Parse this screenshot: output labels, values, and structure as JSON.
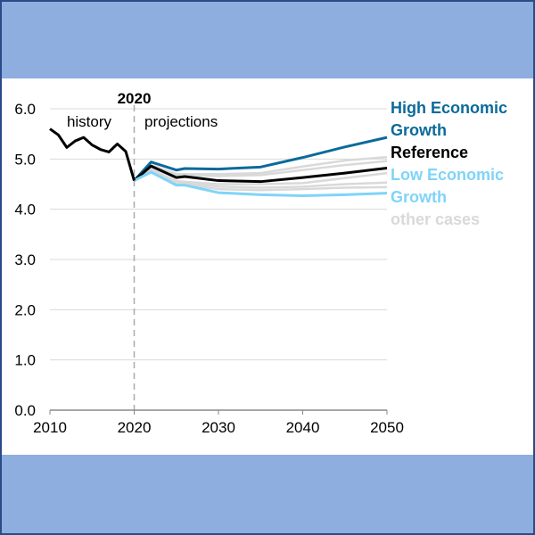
{
  "chart_data": {
    "type": "line",
    "xlim": [
      2010,
      2050
    ],
    "ylim": [
      0,
      6
    ],
    "grid": true,
    "x_ticks": [
      "2010",
      "2020",
      "2030",
      "2040",
      "2050"
    ],
    "y_ticks": [
      "0.0",
      "1.0",
      "2.0",
      "3.0",
      "4.0",
      "5.0",
      "6.0"
    ],
    "annotations": {
      "divider_label": "2020",
      "left_label": "history",
      "right_label": "projections"
    },
    "divider_x": 2020,
    "legend_placement": "right",
    "history": {
      "color": "#000000",
      "x": [
        2010,
        2011,
        2012,
        2013,
        2014,
        2015,
        2016,
        2017,
        2018,
        2019,
        2020
      ],
      "y": [
        5.6,
        5.48,
        5.23,
        5.36,
        5.43,
        5.28,
        5.19,
        5.14,
        5.3,
        5.15,
        4.57
      ]
    },
    "series": [
      {
        "name": "High Economic Growth",
        "color": "#0b6a9a",
        "x": [
          2020,
          2022,
          2025,
          2026,
          2030,
          2035,
          2040,
          2045,
          2050
        ],
        "y": [
          4.57,
          4.94,
          4.78,
          4.81,
          4.8,
          4.84,
          5.03,
          5.24,
          5.43
        ]
      },
      {
        "name": "Reference",
        "color": "#000000",
        "x": [
          2020,
          2022,
          2025,
          2026,
          2030,
          2035,
          2040,
          2045,
          2050
        ],
        "y": [
          4.57,
          4.86,
          4.63,
          4.65,
          4.57,
          4.55,
          4.63,
          4.72,
          4.82
        ]
      },
      {
        "name": "Low Economic Growth",
        "color": "#7fd4f8",
        "x": [
          2020,
          2022,
          2025,
          2026,
          2030,
          2035,
          2040,
          2045,
          2050
        ],
        "y": [
          4.57,
          4.74,
          4.48,
          4.48,
          4.33,
          4.29,
          4.27,
          4.29,
          4.32
        ]
      },
      {
        "name": "other cases",
        "color": "#d9d9d9",
        "x": [
          2020,
          2022,
          2025,
          2030,
          2035,
          2040,
          2045,
          2050
        ],
        "y": [
          4.57,
          4.88,
          4.7,
          4.7,
          4.72,
          4.85,
          4.97,
          5.04
        ]
      },
      {
        "name": "other cases",
        "color": "#d9d9d9",
        "x": [
          2020,
          2022,
          2025,
          2030,
          2035,
          2040,
          2045,
          2050
        ],
        "y": [
          4.57,
          4.87,
          4.68,
          4.66,
          4.68,
          4.78,
          4.88,
          4.96
        ]
      },
      {
        "name": "other cases",
        "color": "#d9d9d9",
        "x": [
          2020,
          2022,
          2025,
          2030,
          2035,
          2040,
          2045,
          2050
        ],
        "y": [
          4.57,
          4.8,
          4.56,
          4.5,
          4.5,
          4.52,
          4.62,
          4.72
        ]
      },
      {
        "name": "other cases",
        "color": "#d9d9d9",
        "x": [
          2020,
          2022,
          2025,
          2030,
          2035,
          2040,
          2045,
          2050
        ],
        "y": [
          4.57,
          4.78,
          4.55,
          4.45,
          4.43,
          4.45,
          4.5,
          4.53
        ]
      },
      {
        "name": "other cases",
        "color": "#d9d9d9",
        "x": [
          2020,
          2022,
          2025,
          2030,
          2035,
          2040,
          2045,
          2050
        ],
        "y": [
          4.57,
          4.76,
          4.52,
          4.4,
          4.38,
          4.4,
          4.43,
          4.44
        ]
      }
    ],
    "legend": [
      {
        "label": "High Economic Growth",
        "lines": [
          "High Economic",
          "Growth"
        ],
        "color": "#0b6a9a"
      },
      {
        "label": "Reference",
        "lines": [
          "Reference"
        ],
        "color": "#000000"
      },
      {
        "label": "Low Economic Growth",
        "lines": [
          "Low Economic",
          "Growth"
        ],
        "color": "#7fd4f8"
      },
      {
        "label": "other cases",
        "lines": [
          "other cases"
        ],
        "color": "#d9d9d9"
      }
    ]
  }
}
